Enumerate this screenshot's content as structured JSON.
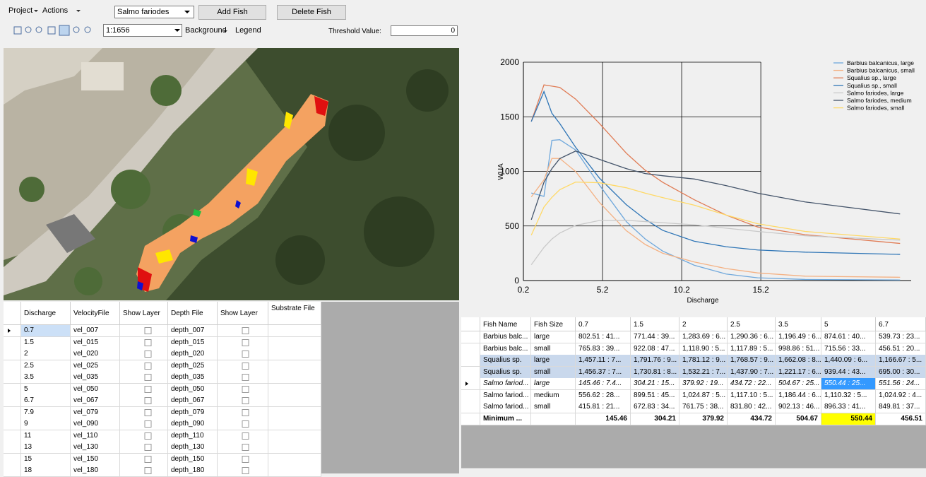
{
  "toolbar": {
    "menus": [
      "Project",
      "Actions"
    ],
    "fish_select": "Salmo fariodes",
    "buttons": [
      "Add Fish",
      "Delete Fish"
    ],
    "scale": "1:1656",
    "background": "Background",
    "legend": "Legend",
    "threshold_label": "Threshold Value:",
    "threshold_value": "0"
  },
  "chart_data": {
    "type": "line",
    "x_label": "Discharge",
    "y_label": "WUA",
    "x": [
      0.7,
      1.5,
      2,
      2.5,
      3.5,
      5,
      6.7,
      7.9,
      9,
      11,
      13,
      15,
      18,
      24
    ],
    "xlim": [
      0.2,
      24.7
    ],
    "xticks": [
      0.2,
      5.2,
      10.2,
      15.2
    ],
    "ylim": [
      0,
      2000
    ],
    "yticks": [
      0,
      500,
      1000,
      1500,
      2000
    ],
    "grid": true,
    "legend": "top-right",
    "series": [
      {
        "name": "Barbius balcanicus, large",
        "color": "#6fa8dc",
        "values": [
          802,
          771,
          1284,
          1290,
          1196,
          875,
          540,
          380,
          270,
          140,
          60,
          25,
          10,
          5
        ]
      },
      {
        "name": "Barbius balcanicus, small",
        "color": "#f4b183",
        "values": [
          766,
          922,
          1119,
          1118,
          999,
          716,
          457,
          330,
          250,
          170,
          110,
          70,
          40,
          30
        ]
      },
      {
        "name": "Squalius sp., large",
        "color": "#e07b54",
        "values": [
          1457,
          1792,
          1781,
          1769,
          1662,
          1440,
          1167,
          1010,
          900,
          740,
          600,
          490,
          420,
          340
        ]
      },
      {
        "name": "Squalius sp., small",
        "color": "#2e75b6",
        "values": [
          1456,
          1731,
          1532,
          1438,
          1221,
          939,
          695,
          560,
          460,
          360,
          310,
          280,
          260,
          240
        ]
      },
      {
        "name": "Salmo fariodes, large",
        "color": "#c9c9c9",
        "values": [
          145,
          304,
          380,
          435,
          505,
          550,
          552,
          540,
          530,
          510,
          480,
          450,
          410,
          370
        ]
      },
      {
        "name": "Salmo fariodes, medium",
        "color": "#44546a",
        "values": [
          557,
          900,
          1025,
          1117,
          1186,
          1110,
          1025,
          980,
          960,
          930,
          870,
          800,
          720,
          610
        ]
      },
      {
        "name": "Salmo fariodes, small",
        "color": "#ffd966",
        "values": [
          416,
          673,
          762,
          832,
          902,
          896,
          850,
          800,
          760,
          690,
          600,
          520,
          450,
          380
        ]
      }
    ]
  },
  "layers_table": {
    "columns": [
      "Discharge",
      "VelocityFile",
      "Show Layer",
      "Depth File",
      "Show Layer",
      "Substrate File"
    ],
    "rows": [
      [
        "0.7",
        "vel_007",
        "depth_007"
      ],
      [
        "1.5",
        "vel_015",
        "depth_015"
      ],
      [
        "2",
        "vel_020",
        "depth_020"
      ],
      [
        "2.5",
        "vel_025",
        "depth_025"
      ],
      [
        "3.5",
        "vel_035",
        "depth_035"
      ],
      [
        "5",
        "vel_050",
        "depth_050"
      ],
      [
        "6.7",
        "vel_067",
        "depth_067"
      ],
      [
        "7.9",
        "vel_079",
        "depth_079"
      ],
      [
        "9",
        "vel_090",
        "depth_090"
      ],
      [
        "11",
        "vel_110",
        "depth_110"
      ],
      [
        "13",
        "vel_130",
        "depth_130"
      ],
      [
        "15",
        "vel_150",
        "depth_150"
      ],
      [
        "18",
        "vel_180",
        "depth_180"
      ]
    ]
  },
  "results_table": {
    "columns": [
      "Fish Name",
      "Fish Size",
      "0.7",
      "1.5",
      "2",
      "2.5",
      "3.5",
      "5",
      "6.7"
    ],
    "rows": [
      [
        "Barbius balc...",
        "large",
        "802.51 : 41...",
        "771.44 : 39...",
        "1,283.69 : 6...",
        "1,290.36 : 6...",
        "1,196.49 : 6...",
        "874.61 : 40...",
        "539.73 : 23..."
      ],
      [
        "Barbius balc...",
        "small",
        "765.83 : 39...",
        "922.08 : 47...",
        "1,118.90 : 5...",
        "1,117.89 : 5...",
        "998.86 : 51...",
        "715.56 : 33...",
        "456.51 : 20..."
      ],
      [
        "Squalius sp.",
        "large",
        "1,457.11 : 7...",
        "1,791.76 : 9...",
        "1,781.12 : 9...",
        "1,768.57 : 9...",
        "1,662.08 : 8...",
        "1,440.09 : 6...",
        "1,166.67 : 5..."
      ],
      [
        "Squalius sp.",
        "small",
        "1,456.37 : 7...",
        "1,730.81 : 8...",
        "1,532.21 : 7...",
        "1,437.90 : 7...",
        "1,221.17 : 6...",
        "939.44 : 43...",
        "695.00 : 30..."
      ],
      [
        "Salmo fariod...",
        "large",
        "145.46 : 7.4...",
        "304.21 : 15...",
        "379.92 : 19...",
        "434.72 : 22...",
        "504.67 : 25...",
        "550.44 : 25...",
        "551.56 : 24..."
      ],
      [
        "Salmo fariod...",
        "medium",
        "556.62 : 28...",
        "899.51 : 45...",
        "1,024.87 : 5...",
        "1,117.10 : 5...",
        "1,186.44 : 6...",
        "1,110.32 : 5...",
        "1,024.92 : 4..."
      ],
      [
        "Salmo fariod...",
        "small",
        "415.81 : 21...",
        "672.83 : 34...",
        "761.75 : 38...",
        "831.80 : 42...",
        "902.13 : 46...",
        "896.33 : 41...",
        "849.81 : 37..."
      ]
    ],
    "minimum": {
      "label": "Minimum ...",
      "values": [
        "145.46",
        "304.21",
        "379.92",
        "434.72",
        "504.67",
        "550.44",
        "456.51"
      ]
    }
  }
}
